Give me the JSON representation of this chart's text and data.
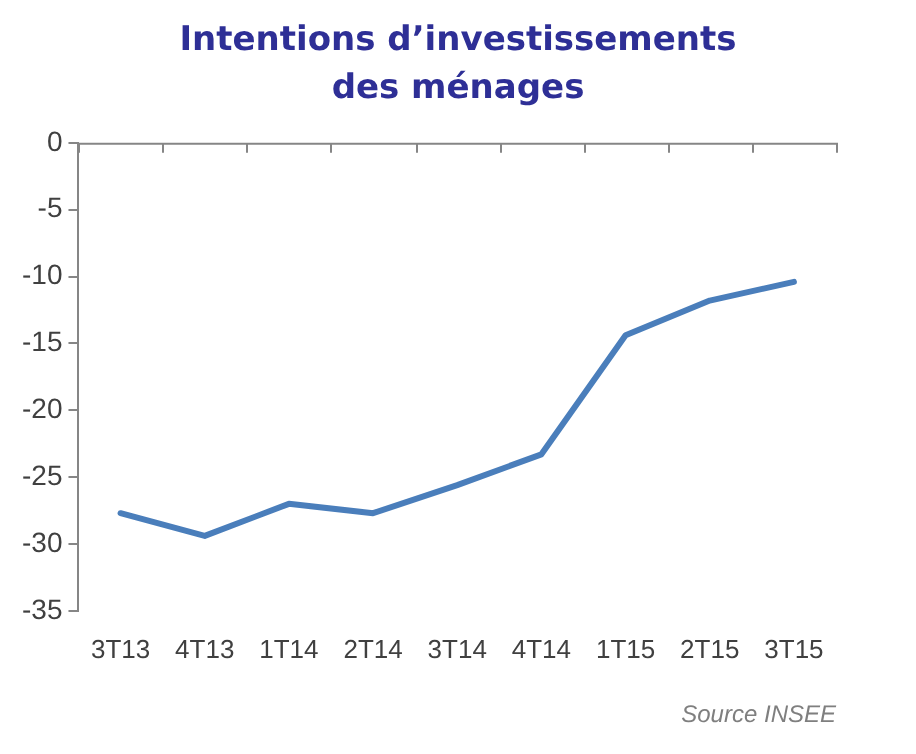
{
  "chart_data": {
    "type": "line",
    "title": "Intentions d’investissements\ndes ménages",
    "categories": [
      "3T13",
      "4T13",
      "1T14",
      "2T14",
      "3T14",
      "4T14",
      "1T15",
      "2T15",
      "3T15"
    ],
    "series": [
      {
        "color": "#4a7ebb",
        "values": [
          -27.7,
          -29.4,
          -27.0,
          -27.7,
          -25.6,
          -23.3,
          -14.4,
          -11.8,
          -10.4
        ]
      }
    ],
    "ylim": [
      -35,
      0
    ],
    "yticks": [
      -35,
      -30,
      -25,
      -20,
      -15,
      -10,
      -5,
      0
    ],
    "grid": false,
    "legend": false,
    "marker": "none",
    "line_style": "solid",
    "annotations": [
      "Source INSEE"
    ]
  }
}
